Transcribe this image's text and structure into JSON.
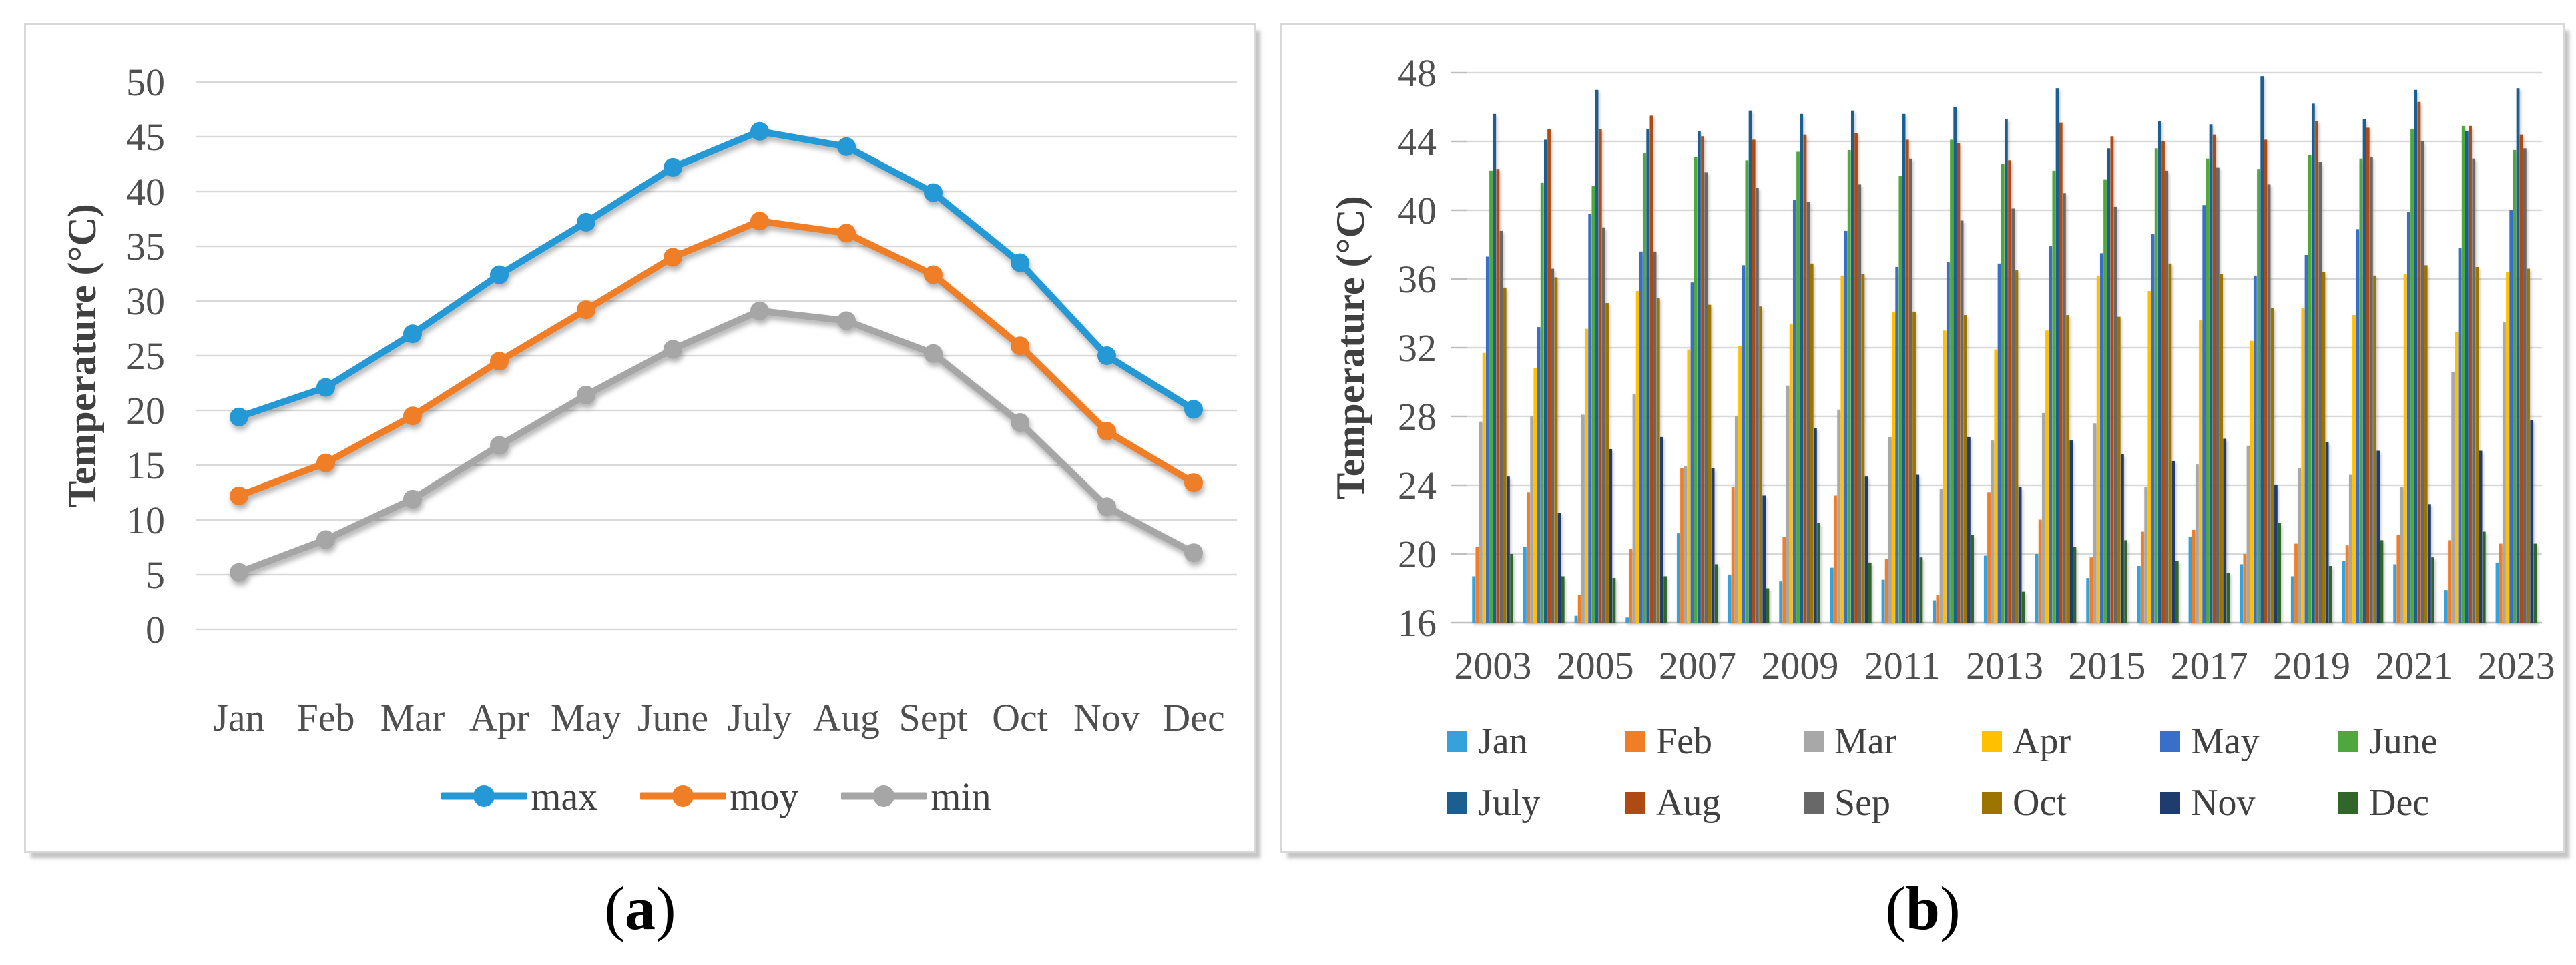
{
  "captions": {
    "a": {
      "open": "(",
      "letter": "a",
      "close": ")"
    },
    "b": {
      "open": "(",
      "letter": "b",
      "close": ")"
    }
  },
  "colors": {
    "gridline": "#d9d9d9",
    "axis_line": "#bfbfbf",
    "axis_text": "#4f4f4f"
  },
  "chart_data": [
    {
      "type": "line",
      "panel": "a",
      "title": "",
      "xlabel": "",
      "ylabel": "Temperature (°C)",
      "ylim": [
        0,
        50
      ],
      "ytick_step": 5,
      "grid": true,
      "legend_position": "bottom",
      "categories": [
        "Jan",
        "Feb",
        "Mar",
        "Apr",
        "May",
        "June",
        "July",
        "Aug",
        "Sept",
        "Oct",
        "Nov",
        "Dec"
      ],
      "series": [
        {
          "name": "max",
          "color": "#2499D6",
          "values": [
            19.4,
            22.1,
            27.0,
            32.4,
            37.2,
            42.2,
            45.5,
            44.1,
            39.9,
            33.5,
            25.0,
            20.1
          ]
        },
        {
          "name": "moy",
          "color": "#F07E27",
          "values": [
            12.2,
            15.2,
            19.5,
            24.5,
            29.2,
            34.0,
            37.3,
            36.2,
            32.4,
            25.9,
            18.1,
            13.4
          ]
        },
        {
          "name": "min",
          "color": "#A6A6A6",
          "values": [
            5.2,
            8.2,
            11.9,
            16.8,
            21.4,
            25.6,
            29.1,
            28.2,
            25.2,
            18.9,
            11.2,
            7.0
          ]
        }
      ]
    },
    {
      "type": "bar",
      "panel": "b",
      "title": "",
      "xlabel": "",
      "ylabel": "Temperature (°C)",
      "ylim": [
        16,
        48
      ],
      "ytick_step": 4,
      "grid": true,
      "legend_position": "bottom",
      "categories": [
        2003,
        2004,
        2005,
        2006,
        2007,
        2008,
        2009,
        2010,
        2011,
        2012,
        2013,
        2014,
        2015,
        2016,
        2017,
        2018,
        2019,
        2020,
        2021,
        2022,
        2023
      ],
      "xtick_labels": [
        "2003",
        "2005",
        "2007",
        "2009",
        "2011",
        "2013",
        "2015",
        "2017",
        "2019",
        "2021",
        "2023"
      ],
      "series": [
        {
          "name": "Jan",
          "color": "#36A2DB",
          "values": [
            18.7,
            20.4,
            16.4,
            16.3,
            21.2,
            18.8,
            18.4,
            19.2,
            18.5,
            17.3,
            19.9,
            20.0,
            18.6,
            19.3,
            21.0,
            19.4,
            18.7,
            19.6,
            19.4,
            17.9,
            19.5
          ]
        },
        {
          "name": "Feb",
          "color": "#F07E27",
          "values": [
            20.4,
            23.6,
            17.6,
            20.3,
            25.0,
            23.9,
            21.0,
            23.4,
            19.7,
            17.6,
            23.6,
            22.0,
            19.8,
            21.3,
            21.4,
            20.0,
            20.6,
            20.5,
            21.1,
            20.8,
            20.6
          ]
        },
        {
          "name": "Mar",
          "color": "#A8A8A8",
          "values": [
            27.7,
            28.0,
            28.1,
            29.3,
            25.1,
            28.0,
            29.8,
            28.4,
            26.8,
            23.8,
            26.6,
            28.2,
            27.6,
            23.9,
            25.2,
            26.3,
            25.0,
            24.6,
            23.9,
            30.6,
            33.5
          ]
        },
        {
          "name": "Apr",
          "color": "#FFC000",
          "values": [
            31.7,
            30.8,
            33.1,
            35.3,
            31.9,
            32.1,
            33.4,
            36.2,
            34.1,
            33.0,
            31.9,
            33.0,
            36.2,
            35.3,
            33.6,
            32.4,
            34.3,
            33.9,
            36.3,
            32.9,
            36.4
          ]
        },
        {
          "name": "May",
          "color": "#3A6FC9",
          "values": [
            37.3,
            33.2,
            39.8,
            37.6,
            35.8,
            36.8,
            40.6,
            38.8,
            36.7,
            37.0,
            36.9,
            37.9,
            37.5,
            38.6,
            40.3,
            36.2,
            37.4,
            38.9,
            39.9,
            37.8,
            40.0
          ]
        },
        {
          "name": "June",
          "color": "#4FA83D",
          "values": [
            42.3,
            41.6,
            41.4,
            43.3,
            43.1,
            42.9,
            43.4,
            43.5,
            42.0,
            44.1,
            42.7,
            42.3,
            41.8,
            43.6,
            43.0,
            42.4,
            43.2,
            43.0,
            44.7,
            44.9,
            43.5
          ]
        },
        {
          "name": "July",
          "color": "#1B5E8F",
          "values": [
            45.6,
            44.1,
            47.0,
            44.7,
            44.6,
            45.8,
            45.6,
            45.8,
            45.6,
            46.0,
            45.3,
            47.1,
            43.6,
            45.2,
            45.0,
            47.8,
            46.2,
            45.3,
            47.0,
            44.6,
            47.1
          ]
        },
        {
          "name": "Aug",
          "color": "#AE4B13",
          "values": [
            42.4,
            44.7,
            44.7,
            45.5,
            44.3,
            44.1,
            44.4,
            44.5,
            44.1,
            43.9,
            42.9,
            45.1,
            44.3,
            44.0,
            44.4,
            44.1,
            45.2,
            44.8,
            46.3,
            44.9,
            44.4
          ]
        },
        {
          "name": "Sep",
          "color": "#686868",
          "values": [
            38.8,
            36.6,
            39.0,
            37.6,
            42.2,
            41.3,
            40.5,
            41.5,
            43.0,
            39.4,
            40.1,
            41.0,
            40.2,
            42.3,
            42.5,
            41.5,
            42.8,
            43.1,
            44.0,
            43.0,
            43.6
          ]
        },
        {
          "name": "Oct",
          "color": "#9C7500",
          "values": [
            35.5,
            36.1,
            34.6,
            34.9,
            34.5,
            34.4,
            36.9,
            36.3,
            34.1,
            33.9,
            36.5,
            33.9,
            33.8,
            36.9,
            36.3,
            34.3,
            36.4,
            36.2,
            36.8,
            36.7,
            36.6
          ]
        },
        {
          "name": "Nov",
          "color": "#1E3D6E",
          "values": [
            24.5,
            22.4,
            26.1,
            26.8,
            25.0,
            23.4,
            27.3,
            24.5,
            24.6,
            26.8,
            23.9,
            26.6,
            25.8,
            25.4,
            26.7,
            24.0,
            26.5,
            26.0,
            22.9,
            26.0,
            27.8
          ]
        },
        {
          "name": "Dec",
          "color": "#31662A",
          "values": [
            20.0,
            18.7,
            18.6,
            18.7,
            19.4,
            18.0,
            21.8,
            19.5,
            19.8,
            21.1,
            17.8,
            20.4,
            20.8,
            19.6,
            18.9,
            21.8,
            19.3,
            20.8,
            19.8,
            21.3,
            20.6
          ]
        }
      ]
    }
  ]
}
